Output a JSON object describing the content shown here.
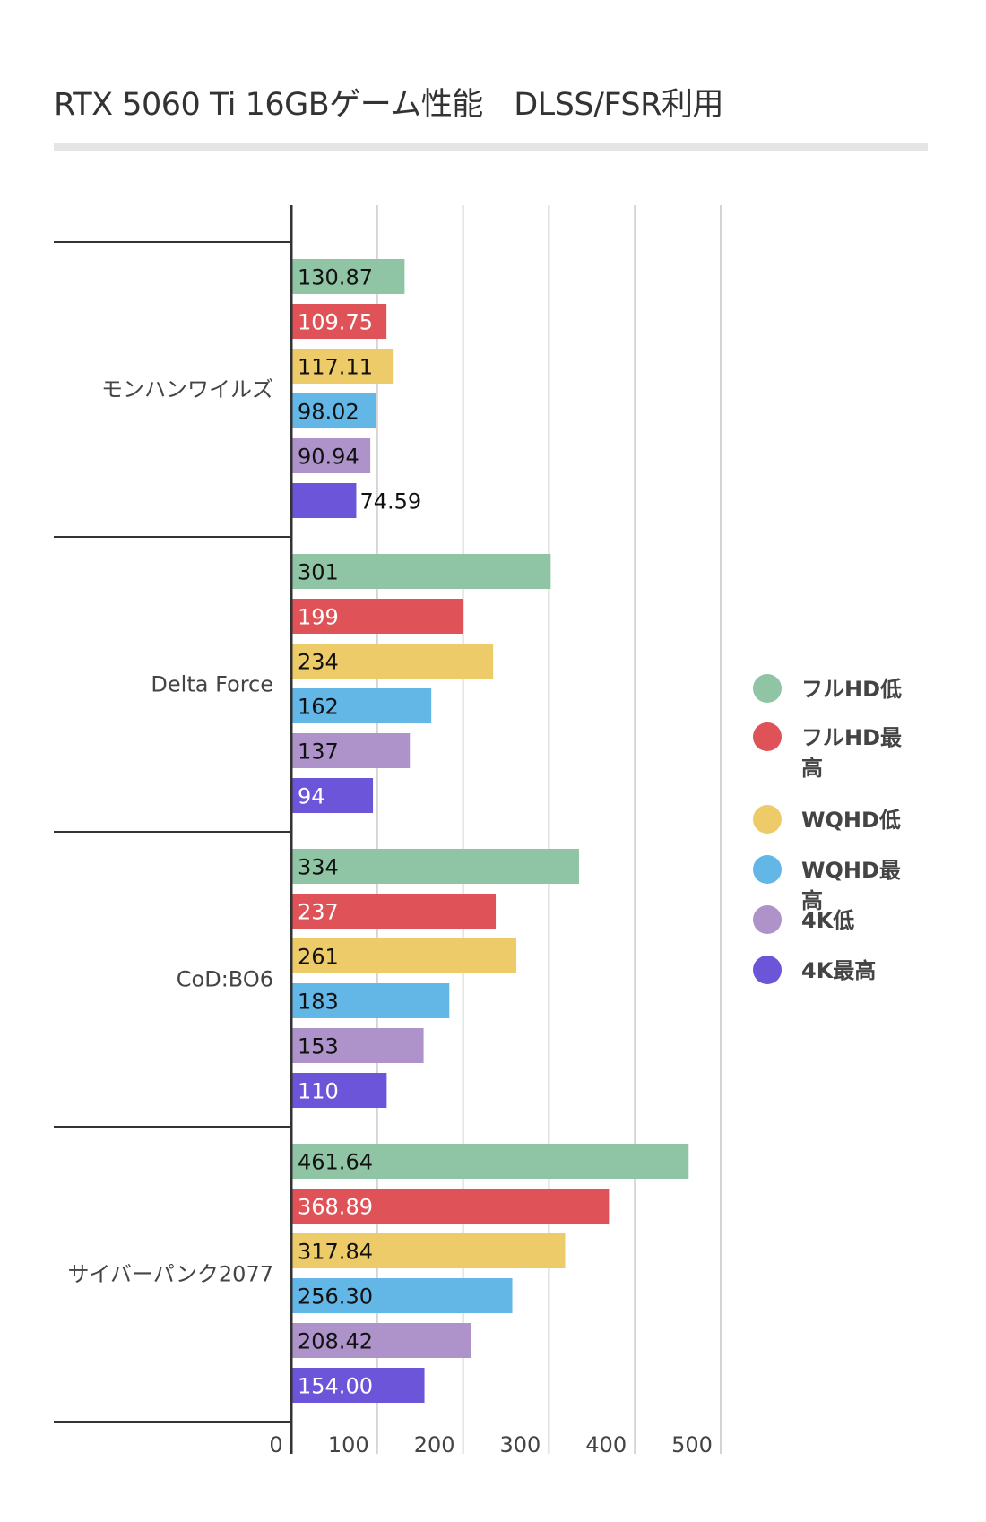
{
  "chart_data": {
    "type": "bar",
    "orientation": "horizontal",
    "title": "RTX 5060 Ti 16GBゲーム性能　DLSS/FSR利用",
    "categories": [
      "モンハンワイルズ",
      "Delta Force",
      "CoD:BO6",
      "サイバーパンク2077"
    ],
    "series": [
      {
        "name": "フルHD低",
        "color": "#8fc4a5",
        "values": [
          130.87,
          301,
          334,
          461.64
        ],
        "labels": [
          "130.87",
          "301",
          "334",
          "461.64"
        ]
      },
      {
        "name": "フルHD最高",
        "color": "#df5257",
        "values": [
          109.75,
          199,
          237,
          368.89
        ],
        "labels": [
          "109.75",
          "199",
          "237",
          "368.89"
        ]
      },
      {
        "name": "WQHD低",
        "color": "#eecb69",
        "values": [
          117.11,
          234,
          261,
          317.84
        ],
        "labels": [
          "117.11",
          "234",
          "261",
          "317.84"
        ]
      },
      {
        "name": "WQHD最高",
        "color": "#62b7e6",
        "values": [
          98.02,
          162,
          183,
          256.3
        ],
        "labels": [
          "98.02",
          "162",
          "183",
          "256.30"
        ]
      },
      {
        "name": "4K低",
        "color": "#ad93c9",
        "values": [
          90.94,
          137,
          153,
          208.42
        ],
        "labels": [
          "90.94",
          "137",
          "153",
          "208.42"
        ]
      },
      {
        "name": "4K最高",
        "color": "#6c55d9",
        "values": [
          74.59,
          94,
          110,
          154.0
        ],
        "labels": [
          "74.59",
          "94",
          "110",
          "154.00"
        ]
      }
    ],
    "label_colors": [
      "#111111",
      "#ffffff",
      "#111111",
      "#111111",
      "#111111",
      "#ffffff"
    ],
    "xlim": [
      0,
      500
    ],
    "xticks": [
      "0",
      "100",
      "200",
      "300",
      "400",
      "500"
    ],
    "grid": true,
    "legend_position": "right",
    "xlabel": "",
    "ylabel": ""
  }
}
